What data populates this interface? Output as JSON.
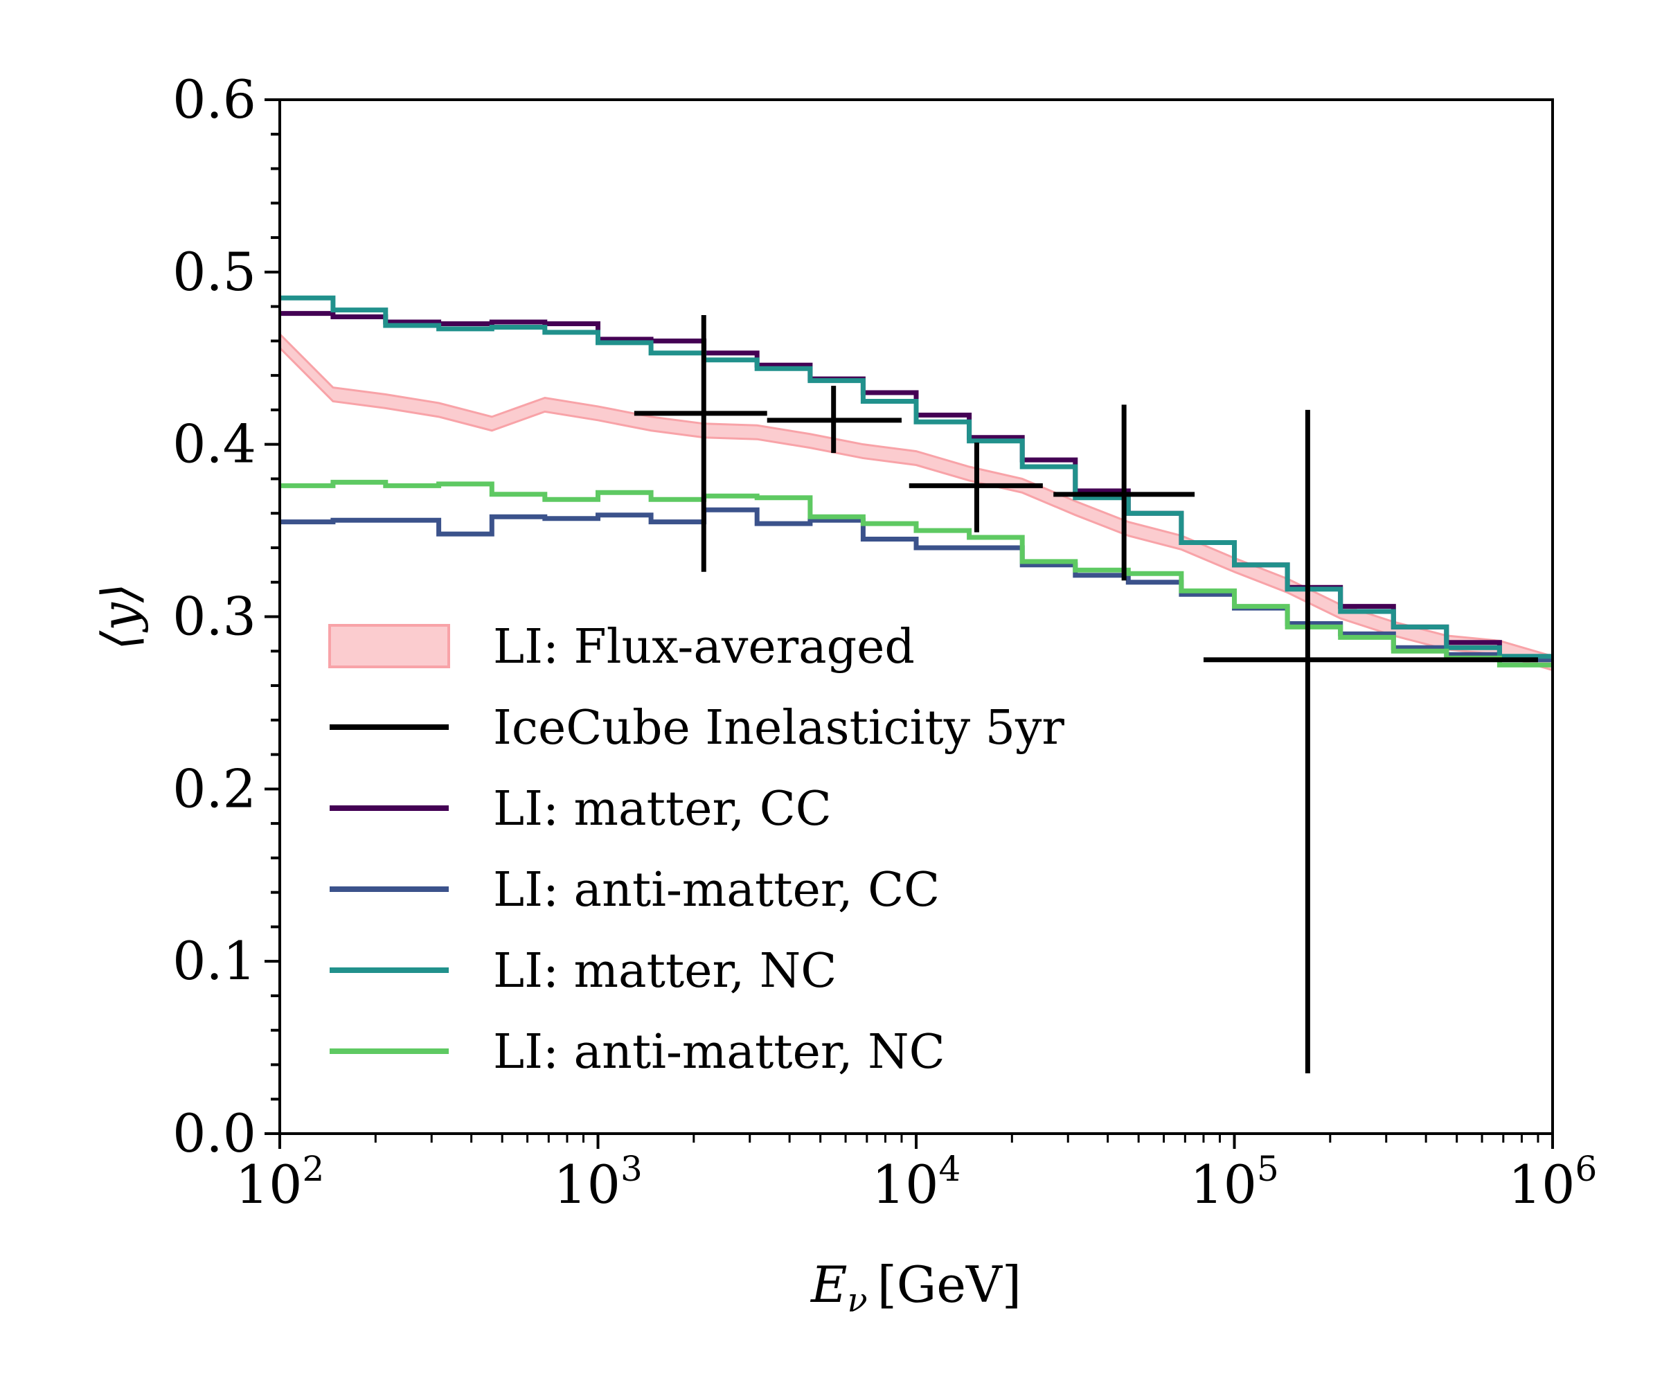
{
  "chart_data": {
    "type": "line",
    "title": "",
    "xlabel": {
      "symbol": "E",
      "subscript": "ν",
      "unit": "[GeV]"
    },
    "ylabel": "⟨y⟩",
    "x_scale": "log",
    "xlim": [
      100,
      1000000
    ],
    "ylim": [
      0.0,
      0.6
    ],
    "x_ticks": [
      {
        "value": 100,
        "base": "10",
        "exp": "2"
      },
      {
        "value": 1000,
        "base": "10",
        "exp": "3"
      },
      {
        "value": 10000,
        "base": "10",
        "exp": "4"
      },
      {
        "value": 100000,
        "base": "10",
        "exp": "5"
      },
      {
        "value": 1000000,
        "base": "10",
        "exp": "6"
      }
    ],
    "y_ticks": [
      {
        "value": 0.0,
        "label": "0.0"
      },
      {
        "value": 0.1,
        "label": "0.1"
      },
      {
        "value": 0.2,
        "label": "0.2"
      },
      {
        "value": 0.3,
        "label": "0.3"
      },
      {
        "value": 0.4,
        "label": "0.4"
      },
      {
        "value": 0.5,
        "label": "0.5"
      },
      {
        "value": 0.6,
        "label": "0.6"
      }
    ],
    "bin_edges": [
      100,
      147,
      215,
      316,
      464,
      681,
      1000,
      1468,
      2154,
      3162,
      4642,
      6813,
      10000,
      14678,
      21544,
      31623,
      46416,
      68129,
      100000,
      146780,
      215443,
      316228,
      464159,
      681292,
      1000000
    ],
    "step_series": [
      {
        "name": "LI: matter, CC",
        "color": "#440154",
        "values": [
          0.476,
          0.474,
          0.471,
          0.47,
          0.471,
          0.47,
          0.461,
          0.46,
          0.453,
          0.446,
          0.438,
          0.43,
          0.417,
          0.404,
          0.391,
          0.373,
          0.36,
          0.343,
          0.33,
          0.317,
          0.306,
          0.294,
          0.285,
          0.276
        ]
      },
      {
        "name": "LI: anti-matter, CC",
        "color": "#3b528b",
        "values": [
          0.355,
          0.356,
          0.356,
          0.348,
          0.358,
          0.357,
          0.359,
          0.355,
          0.362,
          0.354,
          0.356,
          0.345,
          0.34,
          0.34,
          0.33,
          0.324,
          0.32,
          0.313,
          0.305,
          0.296,
          0.29,
          0.282,
          0.278,
          0.275
        ]
      },
      {
        "name": "LI: matter, NC",
        "color": "#21918c",
        "values": [
          0.485,
          0.478,
          0.469,
          0.467,
          0.468,
          0.465,
          0.459,
          0.453,
          0.449,
          0.444,
          0.437,
          0.425,
          0.413,
          0.402,
          0.387,
          0.369,
          0.36,
          0.343,
          0.33,
          0.316,
          0.303,
          0.294,
          0.282,
          0.277
        ]
      },
      {
        "name": "LI: anti-matter, NC",
        "color": "#5ec962",
        "values": [
          0.376,
          0.378,
          0.376,
          0.377,
          0.371,
          0.368,
          0.372,
          0.368,
          0.37,
          0.369,
          0.358,
          0.354,
          0.35,
          0.346,
          0.332,
          0.327,
          0.325,
          0.315,
          0.306,
          0.294,
          0.288,
          0.28,
          0.276,
          0.272
        ]
      }
    ],
    "band": {
      "name": "LI: Flux-averaged",
      "color": "#f8a3a8",
      "x": [
        100,
        147,
        215,
        316,
        464,
        681,
        1000,
        1468,
        2154,
        3162,
        4642,
        6813,
        10000,
        14678,
        21544,
        31623,
        46416,
        68129,
        100000,
        146780,
        215443,
        316228,
        464159,
        681292,
        1000000
      ],
      "y": [
        0.46,
        0.429,
        0.425,
        0.42,
        0.412,
        0.423,
        0.418,
        0.412,
        0.408,
        0.407,
        0.402,
        0.396,
        0.392,
        0.383,
        0.376,
        0.363,
        0.351,
        0.343,
        0.33,
        0.318,
        0.303,
        0.293,
        0.285,
        0.282,
        0.273
      ],
      "halfwidth": 0.004
    },
    "points": {
      "name": "IceCube Inelasticity 5yr",
      "color": "#000000",
      "data": [
        {
          "x": 2150,
          "xlo": 1300,
          "xhi": 3400,
          "y": 0.418,
          "ylo": 0.326,
          "yhi": 0.475
        },
        {
          "x": 5500,
          "xlo": 3400,
          "xhi": 9000,
          "y": 0.414,
          "ylo": 0.395,
          "yhi": 0.434
        },
        {
          "x": 15500,
          "xlo": 9500,
          "xhi": 25000,
          "y": 0.376,
          "ylo": 0.349,
          "yhi": 0.401
        },
        {
          "x": 45000,
          "xlo": 27000,
          "xhi": 75000,
          "y": 0.371,
          "ylo": 0.321,
          "yhi": 0.423
        },
        {
          "x": 170000,
          "xlo": 80000,
          "xhi": 900000,
          "y": 0.275,
          "ylo": 0.035,
          "yhi": 0.42
        }
      ]
    },
    "legend": {
      "position": "lower-left",
      "entries": [
        {
          "label": "LI: Flux-averaged",
          "kind": "band",
          "color": "#f8a3a8"
        },
        {
          "label": "IceCube Inelasticity 5yr",
          "kind": "line",
          "color": "#000000"
        },
        {
          "label": "LI: matter, CC",
          "kind": "line",
          "color": "#440154"
        },
        {
          "label": "LI: anti-matter, CC",
          "kind": "line",
          "color": "#3b528b"
        },
        {
          "label": "LI: matter, NC",
          "kind": "line",
          "color": "#21918c"
        },
        {
          "label": "LI: anti-matter, NC",
          "kind": "line",
          "color": "#5ec962"
        }
      ]
    }
  }
}
